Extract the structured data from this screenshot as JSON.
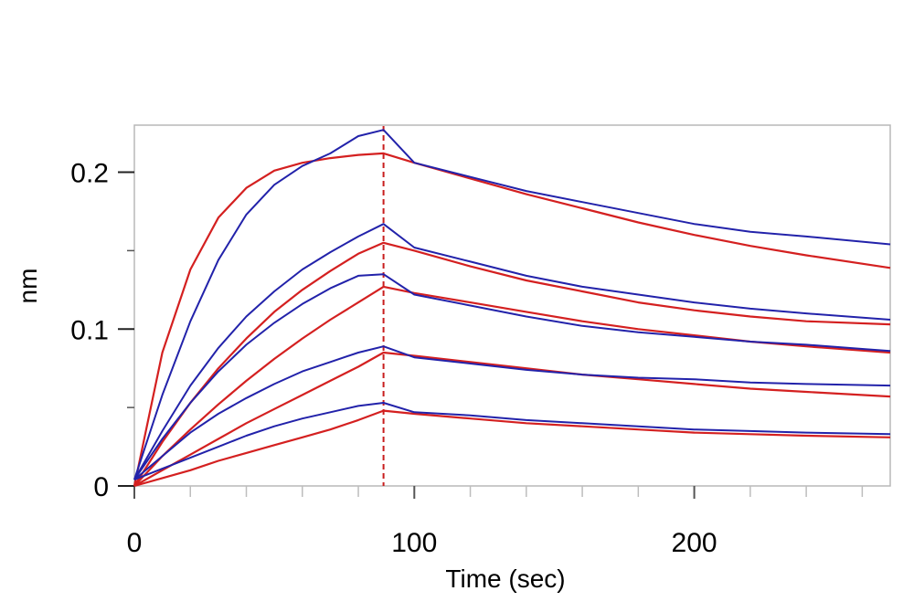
{
  "chart_data": {
    "type": "line",
    "xlabel": "Time (sec)",
    "ylabel": "nm",
    "xlim": [
      0,
      270
    ],
    "ylim": [
      0,
      0.23
    ],
    "xticks": [
      0,
      100,
      200
    ],
    "yticks": [
      0,
      0.1,
      0.2
    ],
    "x_minor_step": 20,
    "y_minor_step": 0.05,
    "grid": false,
    "legend": "none",
    "dissociation_start": 89,
    "colors": {
      "measured": "#2222aa",
      "fit": "#d42020",
      "marker": "#c81e1e",
      "frame": "#b8b8b8"
    },
    "series": [
      {
        "x": [
          0,
          10,
          20,
          30,
          40,
          50,
          60,
          70,
          80,
          89,
          100,
          120,
          140,
          160,
          180,
          200,
          220,
          240,
          270
        ],
        "measured": [
          0.004,
          0.058,
          0.105,
          0.144,
          0.173,
          0.192,
          0.204,
          0.212,
          0.223,
          0.227,
          0.206,
          0.197,
          0.188,
          0.181,
          0.174,
          0.167,
          0.162,
          0.159,
          0.154
        ],
        "fit": [
          0.0,
          0.085,
          0.138,
          0.171,
          0.19,
          0.201,
          0.206,
          0.209,
          0.211,
          0.212,
          0.206,
          0.196,
          0.186,
          0.177,
          0.168,
          0.16,
          0.153,
          0.147,
          0.139
        ]
      },
      {
        "x": [
          0,
          10,
          20,
          30,
          40,
          50,
          60,
          70,
          80,
          89,
          100,
          120,
          140,
          160,
          180,
          200,
          220,
          240,
          270
        ],
        "measured": [
          0.004,
          0.035,
          0.064,
          0.088,
          0.108,
          0.124,
          0.138,
          0.149,
          0.159,
          0.167,
          0.152,
          0.143,
          0.134,
          0.127,
          0.122,
          0.117,
          0.113,
          0.11,
          0.106
        ],
        "fit": [
          0.0,
          0.028,
          0.053,
          0.075,
          0.094,
          0.111,
          0.125,
          0.137,
          0.148,
          0.155,
          0.15,
          0.14,
          0.131,
          0.124,
          0.117,
          0.112,
          0.108,
          0.105,
          0.103
        ]
      },
      {
        "x": [
          0,
          10,
          20,
          30,
          40,
          50,
          60,
          70,
          80,
          89,
          100,
          120,
          140,
          160,
          180,
          200,
          220,
          240,
          270
        ],
        "measured": [
          0.004,
          0.03,
          0.053,
          0.073,
          0.09,
          0.104,
          0.116,
          0.126,
          0.134,
          0.135,
          0.122,
          0.115,
          0.108,
          0.102,
          0.098,
          0.095,
          0.092,
          0.09,
          0.086
        ],
        "fit": [
          0.0,
          0.019,
          0.036,
          0.052,
          0.067,
          0.081,
          0.094,
          0.106,
          0.117,
          0.127,
          0.123,
          0.117,
          0.111,
          0.105,
          0.1,
          0.096,
          0.092,
          0.089,
          0.085
        ]
      },
      {
        "x": [
          0,
          10,
          20,
          30,
          40,
          50,
          60,
          70,
          80,
          89,
          100,
          120,
          140,
          160,
          180,
          200,
          220,
          240,
          270
        ],
        "measured": [
          0.004,
          0.019,
          0.034,
          0.046,
          0.056,
          0.065,
          0.073,
          0.079,
          0.085,
          0.089,
          0.082,
          0.078,
          0.074,
          0.071,
          0.069,
          0.068,
          0.066,
          0.065,
          0.064
        ],
        "fit": [
          0.0,
          0.01,
          0.02,
          0.03,
          0.04,
          0.049,
          0.058,
          0.067,
          0.076,
          0.085,
          0.083,
          0.079,
          0.075,
          0.071,
          0.068,
          0.065,
          0.062,
          0.06,
          0.057
        ]
      },
      {
        "x": [
          0,
          10,
          20,
          30,
          40,
          50,
          60,
          70,
          80,
          89,
          100,
          120,
          140,
          160,
          180,
          200,
          220,
          240,
          270
        ],
        "measured": [
          0.004,
          0.011,
          0.018,
          0.025,
          0.032,
          0.038,
          0.043,
          0.047,
          0.051,
          0.053,
          0.047,
          0.045,
          0.042,
          0.04,
          0.038,
          0.036,
          0.035,
          0.034,
          0.033
        ],
        "fit": [
          0.0,
          0.005,
          0.01,
          0.016,
          0.021,
          0.026,
          0.031,
          0.036,
          0.042,
          0.048,
          0.046,
          0.043,
          0.04,
          0.038,
          0.036,
          0.034,
          0.033,
          0.032,
          0.031
        ]
      }
    ]
  }
}
